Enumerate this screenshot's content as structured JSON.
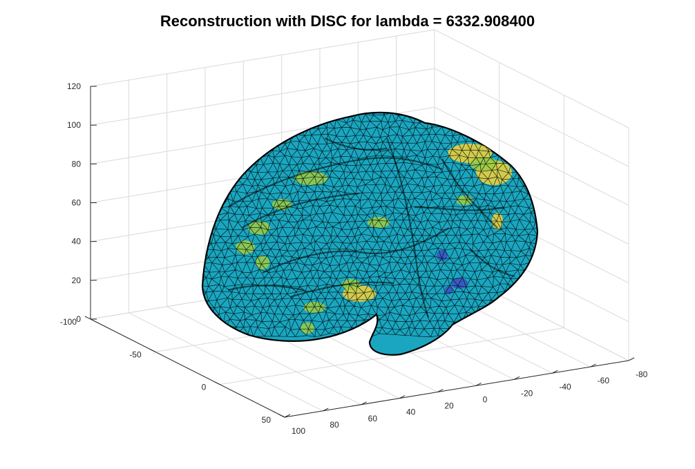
{
  "chart_data": {
    "type": "surface3d",
    "title": "Reconstruction with DISC for lambda = 6332.908400",
    "xlabel": "",
    "ylabel": "",
    "zlabel": "",
    "x_ticks": [
      100,
      80,
      60,
      40,
      20,
      0,
      -20,
      -40,
      -60,
      -80
    ],
    "y_ticks": [
      -100,
      -50,
      0,
      50
    ],
    "z_ticks": [
      0,
      20,
      40,
      60,
      80,
      100,
      120
    ],
    "xlim": [
      100,
      -80
    ],
    "ylim": [
      -100,
      50
    ],
    "zlim": [
      0,
      120
    ],
    "grid": true,
    "surface": "triangulated brain cortex mesh, mostly uniform color with sparse colored patches",
    "colors": {
      "base": "#1aa6c0",
      "edge": "#000000",
      "high": "#f3d23a",
      "mid": "#9ccc44",
      "low": "#3b4fc6",
      "grid": "#d9d9d9",
      "axis": "#262626"
    }
  }
}
